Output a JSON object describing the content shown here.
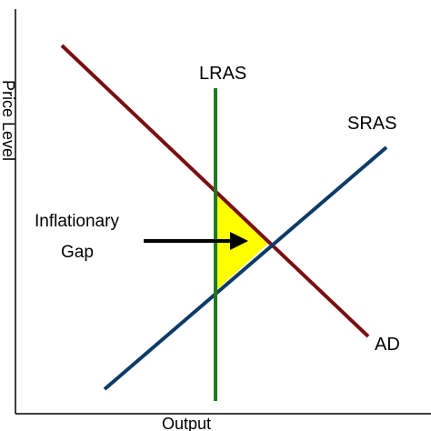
{
  "diagram": {
    "axes": {
      "y_label": "Price Level",
      "x_label": "Output"
    },
    "curves": [
      {
        "name": "LRAS",
        "label": "LRAS",
        "color": "#1f7a1f"
      },
      {
        "name": "SRAS",
        "label": "SRAS",
        "color": "#0d3b66"
      },
      {
        "name": "AD",
        "label": "AD",
        "color": "#7a0f0f"
      }
    ],
    "gap": {
      "label_line1": "Inflationary",
      "label_line2": "Gap",
      "fill_color": "#ffff00"
    }
  }
}
